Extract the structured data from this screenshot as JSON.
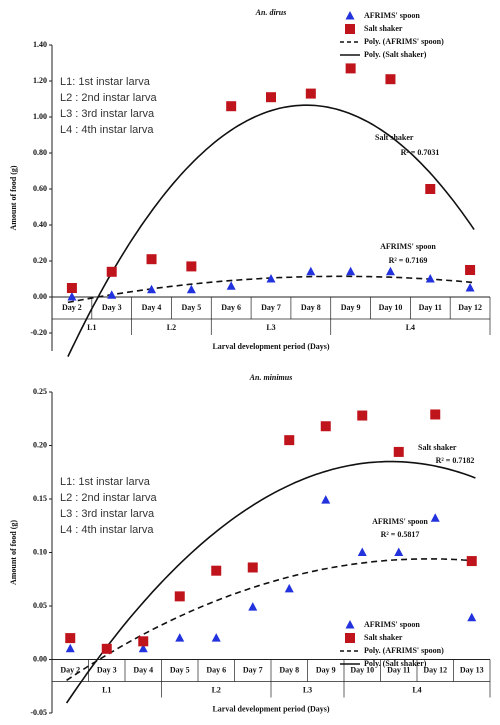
{
  "chart_data": [
    {
      "type": "scatter",
      "title": "An. dirus",
      "y_label": "Amount of food (g)",
      "x_label": "Larval development period (Days)",
      "categories": [
        "Day 2",
        "Day 3",
        "Day 4",
        "Day 5",
        "Day 6",
        "Day 7",
        "Day 8",
        "Day 9",
        "Day 10",
        "Day 11",
        "Day 12"
      ],
      "series": [
        {
          "name": "AFRIMS' spoon",
          "marker": "triangle",
          "color": "#2233dd",
          "trend_name": "Poly. (AFRIMS' spoon)",
          "trend_dash": true,
          "values": [
            0.0,
            0.01,
            0.04,
            0.04,
            0.06,
            0.1,
            0.14,
            0.14,
            0.14,
            0.1,
            0.05
          ]
        },
        {
          "name": "Salt shaker",
          "marker": "square",
          "color": "#c0141c",
          "trend_name": "Poly. (Salt shaker)",
          "trend_dash": false,
          "values": [
            0.05,
            0.14,
            0.21,
            0.17,
            1.06,
            1.11,
            1.13,
            1.27,
            1.21,
            0.6,
            0.15
          ]
        }
      ],
      "stages": [
        {
          "label": "L1",
          "from": "Day 2",
          "to": "Day 3"
        },
        {
          "label": "L2",
          "from": "Day 4",
          "to": "Day 5"
        },
        {
          "label": "L3",
          "from": "Day 6",
          "to": "Day 8"
        },
        {
          "label": "L4",
          "from": "Day 9",
          "to": "Day 12"
        }
      ],
      "stage_notes": [
        "L1: 1st instar larva",
        "L2 : 2nd instar larva",
        "L3 : 3rd instar larva",
        "L4 : 4th instar larva"
      ],
      "annotations": [
        "Salt shaker",
        "R² = 0.7031",
        "AFRIMS' spoon",
        "R² = 0.7169"
      ],
      "legend": "upper right",
      "ylim": [
        -0.3,
        1.4
      ],
      "yticks": [
        {
          "value": -0.2,
          "label": "-0.20"
        },
        {
          "value": 0,
          "label": "0.00"
        },
        {
          "value": 0.2,
          "label": "0.20"
        },
        {
          "value": 0.4,
          "label": "0.40"
        },
        {
          "value": 0.6,
          "label": "0.60"
        },
        {
          "value": 0.8,
          "label": "0.80"
        },
        {
          "value": 1.0,
          "label": "1.00"
        },
        {
          "value": 1.2,
          "label": "1.20"
        },
        {
          "value": 1.4,
          "label": "1.40"
        }
      ]
    },
    {
      "type": "scatter",
      "title": "An. minimus",
      "y_label": "Amount of food (g)",
      "x_label": "Larval development period (Days)",
      "categories": [
        "Day 2",
        "Day 3",
        "Day 4",
        "Day 5",
        "Day 6",
        "Day 7",
        "Day 8",
        "Day 9",
        "Day 10",
        "Day 11",
        "Day 12",
        "Day 13"
      ],
      "series": [
        {
          "name": "AFRIMS' spoon",
          "marker": "triangle",
          "color": "#2233dd",
          "trend_name": "Poly. (AFRIMS' spoon)",
          "trend_dash": true,
          "values": [
            0.01,
            0.01,
            0.01,
            0.02,
            0.02,
            0.049,
            0.066,
            0.149,
            0.1,
            0.1,
            0.132,
            0.039
          ]
        },
        {
          "name": "Salt shaker",
          "marker": "square",
          "color": "#c0141c",
          "trend_name": "Poly. (Salt shaker)",
          "trend_dash": false,
          "values": [
            0.02,
            0.01,
            0.017,
            0.059,
            0.083,
            0.086,
            0.205,
            0.218,
            0.228,
            0.194,
            0.229,
            0.092
          ]
        }
      ],
      "stages": [
        {
          "label": "L1",
          "from": "Day 2",
          "to": "Day 4"
        },
        {
          "label": "L2",
          "from": "Day 5",
          "to": "Day 7"
        },
        {
          "label": "L3",
          "from": "Day 8",
          "to": "Day 9"
        },
        {
          "label": "L4",
          "from": "Day 10",
          "to": "Day 13"
        }
      ],
      "stage_notes": [
        "L1: 1st instar larva",
        "L2 : 2nd instar larva",
        "L3 : 3rd instar larva",
        "L4 : 4th instar larva"
      ],
      "annotations": [
        "Salt shaker",
        "R² = 0.7182",
        "AFRIMS' spoon",
        "R² = 0.5817"
      ],
      "legend": "lower right",
      "ylim": [
        -0.05,
        0.25
      ],
      "yticks": [
        {
          "value": -0.05,
          "label": "-0.05"
        },
        {
          "value": 0,
          "label": "0.00"
        },
        {
          "value": 0.05,
          "label": "0.05"
        },
        {
          "value": 0.1,
          "label": "0.10"
        },
        {
          "value": 0.15,
          "label": "0.15"
        },
        {
          "value": 0.2,
          "label": "0.20"
        },
        {
          "value": 0.25,
          "label": "0.25"
        }
      ]
    }
  ]
}
